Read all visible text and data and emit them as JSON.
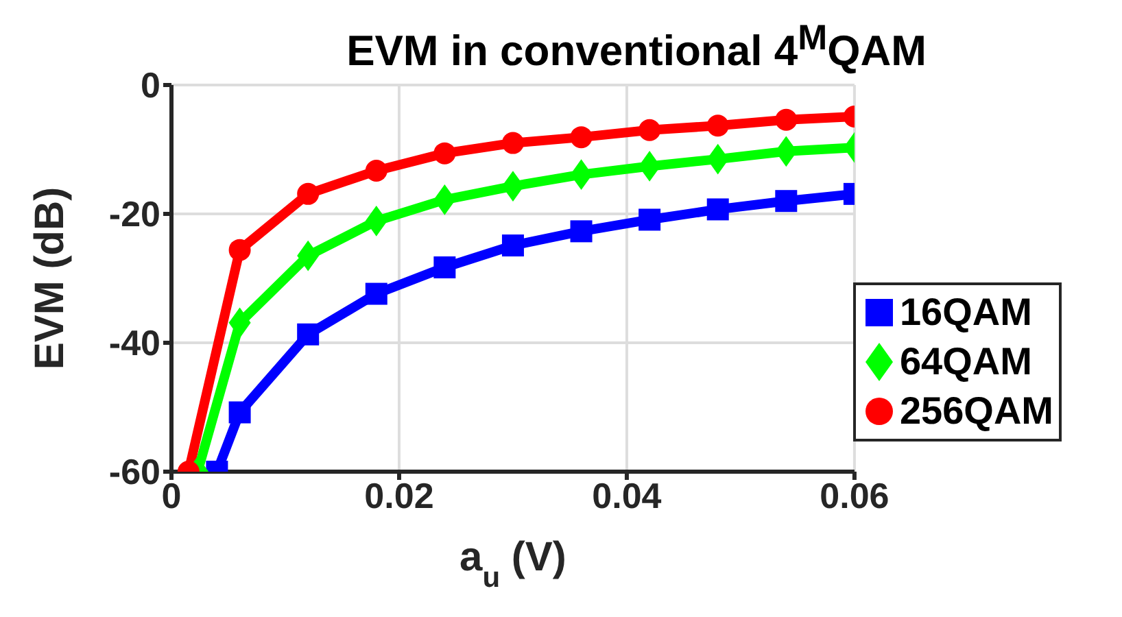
{
  "chart_data": {
    "type": "line",
    "title": "EVM in conventional 4$^{M}$QAM",
    "xlabel": "a$_{u}$ (V)",
    "ylabel": "EVM (dB)",
    "xlim": [
      0,
      0.06
    ],
    "xticks": [
      0,
      0.02,
      0.04,
      0.06
    ],
    "ylim": [
      -60,
      0
    ],
    "yticks": [
      -60,
      -40,
      -20,
      0
    ],
    "grid": true,
    "legend": "bottom right",
    "line_style": "solid",
    "series": [
      {
        "name": "16QAM",
        "color": "#0000ff",
        "marker": "square",
        "x": [
          0.004,
          0.006,
          0.012,
          0.018,
          0.024,
          0.03,
          0.036,
          0.042,
          0.048,
          0.054,
          0.06
        ],
        "values": [
          -60,
          -50.8,
          -38.7,
          -32.4,
          -28.3,
          -24.9,
          -22.7,
          -20.9,
          -19.3,
          -18,
          -16.9
        ]
      },
      {
        "name": "64QAM",
        "color": "#00ff00",
        "marker": "diamond",
        "x": [
          0.0023,
          0.006,
          0.012,
          0.018,
          0.024,
          0.03,
          0.036,
          0.042,
          0.048,
          0.054,
          0.06
        ],
        "values": [
          -60,
          -36.9,
          -26.5,
          -21.1,
          -17.8,
          -15.7,
          -13.9,
          -12.6,
          -11.5,
          -10.3,
          -9.7
        ]
      },
      {
        "name": "256QAM",
        "color": "#ff0000",
        "marker": "circle",
        "x": [
          0.0015,
          0.006,
          0.012,
          0.018,
          0.024,
          0.03,
          0.036,
          0.042,
          0.048,
          0.054,
          0.06
        ],
        "values": [
          -60,
          -25.6,
          -16.9,
          -13.3,
          -10.6,
          -9,
          -8.1,
          -7,
          -6.3,
          -5.4,
          -4.9
        ]
      }
    ]
  }
}
